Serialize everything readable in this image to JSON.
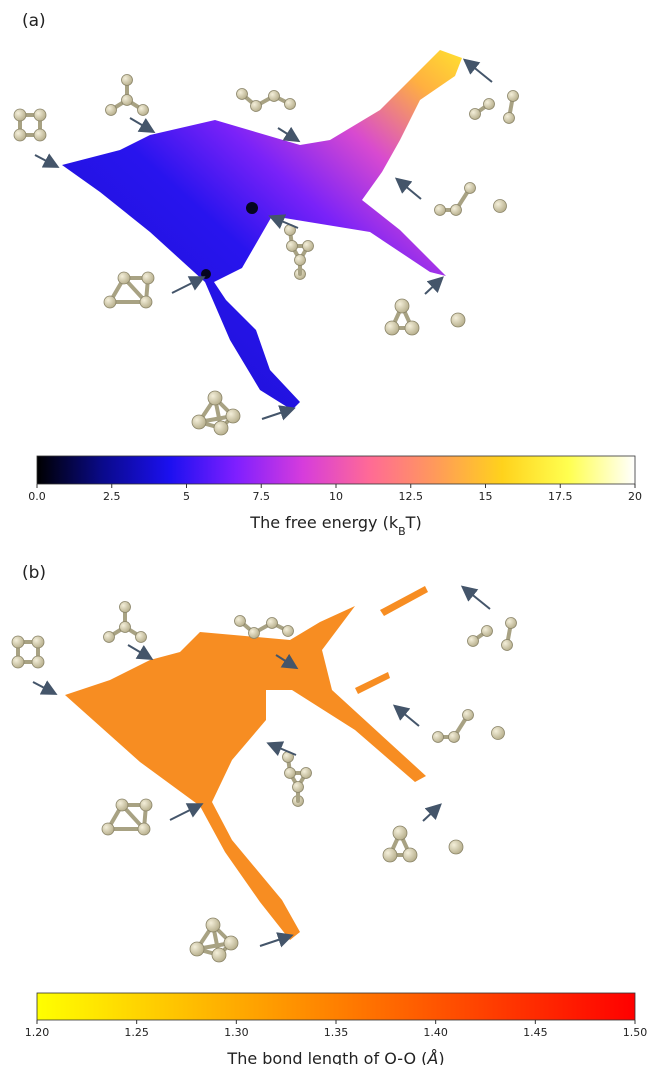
{
  "chart_data": [
    {
      "type": "colorbar",
      "panel": "(a)",
      "label_parts": [
        "The free energy (k",
        "B",
        "T)"
      ],
      "xlim": [
        0,
        20
      ],
      "xticks": [
        {
          "value": 0,
          "label": "0.0"
        },
        2.5,
        5,
        7.5,
        10,
        12.5,
        15,
        17.5,
        20
      ],
      "colors": [
        "#000000",
        "#0a0a8c",
        "#1c10f0",
        "#7f1fff",
        "#d63cdc",
        "#ff6a96",
        "#ff9a5a",
        "#ffd21c",
        "#ffff50",
        "#ffffff"
      ]
    },
    {
      "type": "colorbar",
      "panel": "(b)",
      "label_parts": [
        "The bond length of O-O (",
        "Å",
        ")"
      ],
      "xlim": [
        1.2,
        1.5
      ],
      "xticks": [
        {
          "value": 1.2,
          "label": "1.20"
        },
        1.25,
        {
          "value": 1.3,
          "label": "1.30"
        },
        1.35,
        {
          "value": 1.4,
          "label": "1.40"
        },
        1.45,
        {
          "value": 1.5,
          "label": "1.50"
        }
      ],
      "colors": [
        "#ffff00",
        "#ff8000",
        "#ff0000"
      ]
    }
  ]
}
